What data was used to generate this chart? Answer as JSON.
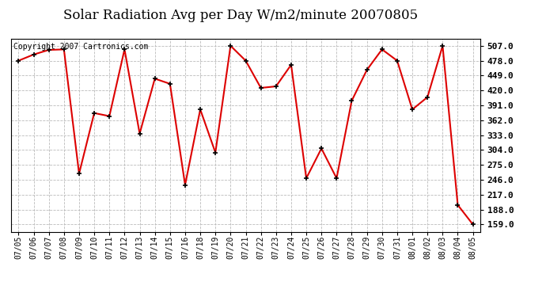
{
  "title": "Solar Radiation Avg per Day W/m2/minute 20070805",
  "copyright": "Copyright 2007 Cartronics.com",
  "dates": [
    "07/05",
    "07/06",
    "07/07",
    "07/08",
    "07/09",
    "07/10",
    "07/11",
    "07/12",
    "07/13",
    "07/14",
    "07/15",
    "07/16",
    "07/18",
    "07/19",
    "07/20",
    "07/21",
    "07/22",
    "07/23",
    "07/24",
    "07/25",
    "07/26",
    "07/27",
    "07/28",
    "07/29",
    "07/30",
    "07/31",
    "08/01",
    "08/02",
    "08/03",
    "08/04",
    "08/05"
  ],
  "values": [
    478.0,
    490.0,
    499.0,
    500.0,
    258.0,
    376.0,
    370.0,
    500.0,
    336.0,
    443.0,
    433.0,
    236.0,
    383.0,
    299.0,
    507.0,
    478.0,
    425.0,
    428.0,
    470.0,
    249.0,
    307.0,
    249.0,
    400.0,
    460.0,
    500.0,
    478.0,
    383.0,
    407.0,
    507.0,
    197.0,
    159.0
  ],
  "line_color": "#dd0000",
  "marker_color": "#000000",
  "bg_color": "#ffffff",
  "plot_bg_color": "#ffffff",
  "grid_color": "#bbbbbb",
  "ytick_labels": [
    "159.0",
    "188.0",
    "217.0",
    "246.0",
    "275.0",
    "304.0",
    "333.0",
    "362.0",
    "391.0",
    "420.0",
    "449.0",
    "478.0",
    "507.0"
  ],
  "ytick_values": [
    159.0,
    188.0,
    217.0,
    246.0,
    275.0,
    304.0,
    333.0,
    362.0,
    391.0,
    420.0,
    449.0,
    478.0,
    507.0
  ],
  "ymin": 145.0,
  "ymax": 521.0,
  "title_fontsize": 12,
  "copyright_fontsize": 7,
  "ytick_fontsize": 8,
  "xtick_fontsize": 7
}
